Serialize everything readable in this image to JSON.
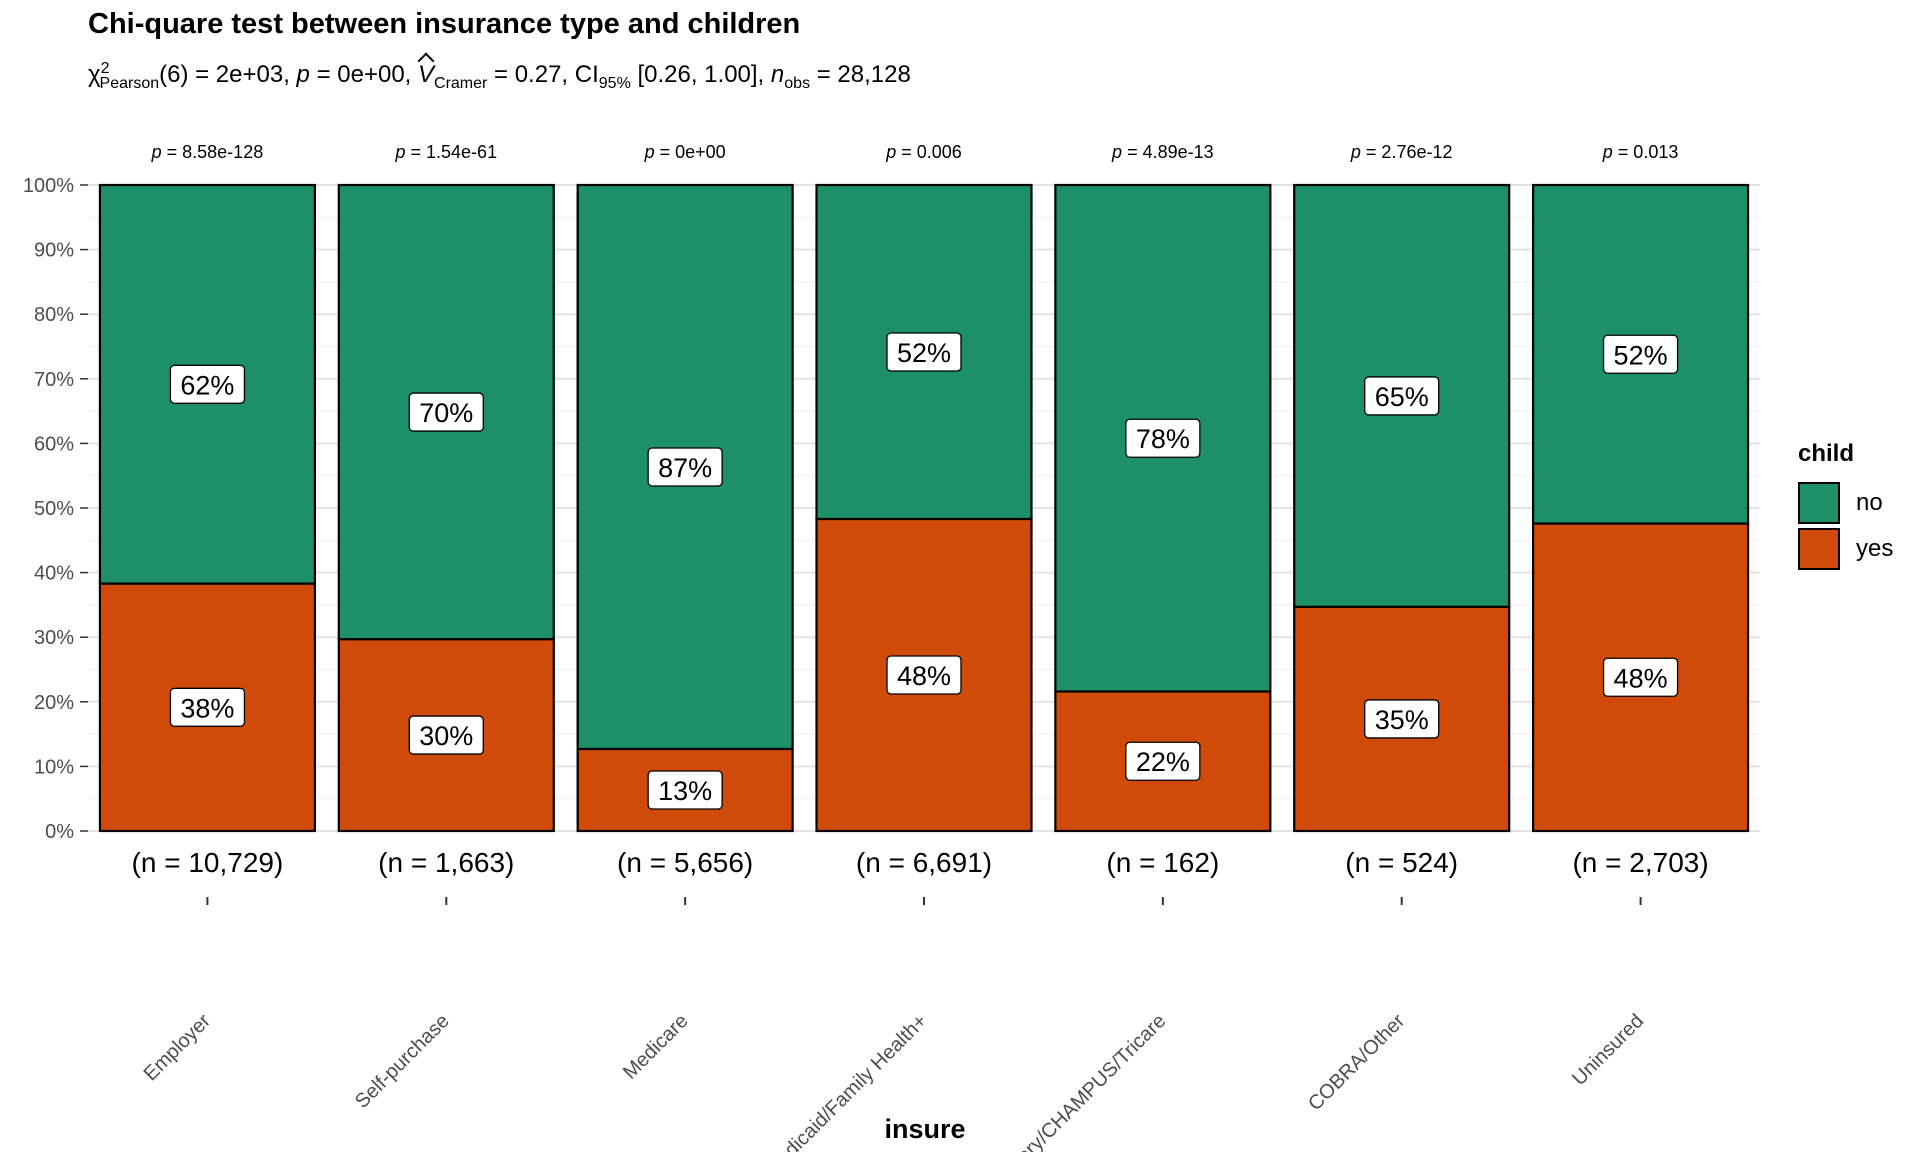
{
  "chart_data": {
    "type": "bar",
    "stacked": "percent",
    "title": "Chi-quare test between insurance type and children",
    "subtitle": {
      "chi_label": "χ",
      "chi_sup": "2",
      "chi_sub": "Pearson",
      "part1": "(6) = 2e+03, ",
      "p_sym": "p",
      "part2": " = 0e+00, ",
      "v_sym": "V",
      "v_sub": "Cramer",
      "part3": " = 0.27, CI",
      "ci_sub": "95%",
      "part4": " [0.26, 1.00], ",
      "n_sym": "n",
      "n_sub": "obs",
      "part5": " = 28,128"
    },
    "xlabel": "insure",
    "ylabel": "",
    "ylim": [
      0,
      100
    ],
    "yticks": [
      "0%",
      "10%",
      "20%",
      "30%",
      "40%",
      "50%",
      "60%",
      "70%",
      "80%",
      "90%",
      "100%"
    ],
    "categories": [
      "Employer",
      "Self-purchase",
      "Medicare",
      "Medicaid/Family Health+",
      "Military/CHAMPUS/Tricare",
      "COBRA/Other",
      "Uninsured"
    ],
    "p_values": [
      "8.58e-128",
      "1.54e-61",
      "0e+00",
      "0.006",
      "4.89e-13",
      "2.76e-12",
      "0.013"
    ],
    "p_prefix": "p",
    "n_labels": [
      "(n = 10,729)",
      "(n = 1,663)",
      "(n = 5,656)",
      "(n = 6,691)",
      "(n = 162)",
      "(n = 524)",
      "(n = 2,703)"
    ],
    "series": [
      {
        "name": "yes",
        "color": "#D04B0A",
        "values": [
          38.3,
          29.7,
          12.7,
          48.3,
          21.6,
          34.7,
          47.6
        ],
        "labels": [
          "38%",
          "30%",
          "13%",
          "48%",
          "22%",
          "35%",
          "48%"
        ]
      },
      {
        "name": "no",
        "color": "#1D9068",
        "values": [
          61.7,
          70.3,
          87.3,
          51.7,
          78.4,
          65.3,
          52.4
        ],
        "labels": [
          "62%",
          "70%",
          "87%",
          "52%",
          "78%",
          "65%",
          "52%"
        ]
      }
    ],
    "legend": {
      "title": "child",
      "position": "right",
      "entries": [
        "no",
        "yes"
      ]
    },
    "grid": true
  }
}
